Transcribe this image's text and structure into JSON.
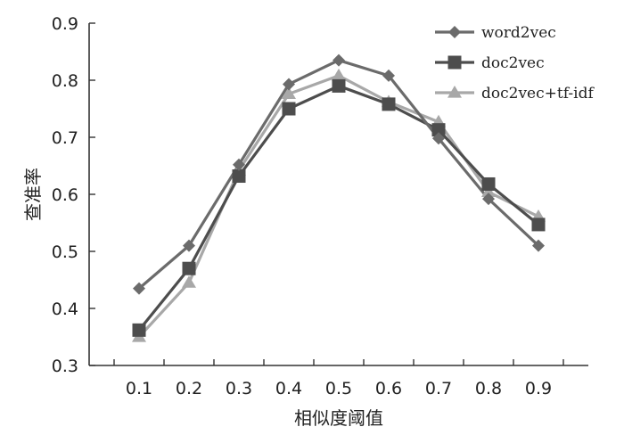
{
  "chart_data": {
    "type": "line",
    "xlabel": "相似度阈值",
    "ylabel": "查准率",
    "x": [
      0.1,
      0.2,
      0.3,
      0.4,
      0.5,
      0.6,
      0.7,
      0.8,
      0.9
    ],
    "x_tick_labels": [
      "0.1",
      "0.2",
      "0.3",
      "0.4",
      "0.5",
      "0.6",
      "0.7",
      "0.8",
      "0.9"
    ],
    "y_tick_labels": [
      "0.3",
      "0.4",
      "0.5",
      "0.6",
      "0.7",
      "0.8",
      "0.9"
    ],
    "ylim": [
      0.3,
      0.9
    ],
    "grid": false,
    "legend_position": "top-right",
    "series": [
      {
        "name": "word2vec",
        "marker": "diamond",
        "color": "#6b6b6b",
        "values": [
          0.435,
          0.51,
          0.652,
          0.793,
          0.835,
          0.808,
          0.698,
          0.592,
          0.51
        ]
      },
      {
        "name": "doc2vec",
        "marker": "square",
        "color": "#4d4d4d",
        "values": [
          0.362,
          0.47,
          0.632,
          0.75,
          0.79,
          0.758,
          0.713,
          0.618,
          0.547
        ]
      },
      {
        "name": "doc2vec+tf-idf",
        "marker": "triangle",
        "color": "#a8a8a8",
        "values": [
          0.35,
          0.445,
          0.642,
          0.776,
          0.808,
          0.762,
          0.727,
          0.604,
          0.561
        ]
      }
    ]
  }
}
